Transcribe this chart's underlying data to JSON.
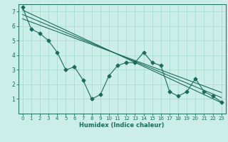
{
  "xlabel": "Humidex (Indice chaleur)",
  "background_color": "#cceee8",
  "grid_color": "#aaddcc",
  "line_color": "#1a6b5a",
  "xlim": [
    -0.5,
    23.5
  ],
  "ylim": [
    0,
    7.5
  ],
  "xticks": [
    0,
    1,
    2,
    3,
    4,
    5,
    6,
    7,
    8,
    9,
    10,
    11,
    12,
    13,
    14,
    15,
    16,
    17,
    18,
    19,
    20,
    21,
    22,
    23
  ],
  "yticks": [
    1,
    2,
    3,
    4,
    5,
    6,
    7
  ],
  "series1": [
    7.3,
    5.8,
    5.5,
    5.0,
    4.2,
    3.0,
    3.2,
    2.3,
    1.0,
    1.3,
    2.6,
    3.3,
    3.5,
    3.5,
    4.2,
    3.5,
    3.3,
    1.5,
    1.2,
    1.5,
    2.4,
    1.5,
    1.2,
    0.8
  ],
  "trend_lines": [
    {
      "x": [
        0,
        23
      ],
      "y": [
        7.1,
        0.75
      ]
    },
    {
      "x": [
        0,
        23
      ],
      "y": [
        6.8,
        1.1
      ]
    },
    {
      "x": [
        0,
        23
      ],
      "y": [
        6.5,
        1.45
      ]
    }
  ],
  "marker": "D",
  "markersize": 2.5,
  "linewidth": 0.8,
  "tick_fontsize": 5.0,
  "xlabel_fontsize": 6.0
}
